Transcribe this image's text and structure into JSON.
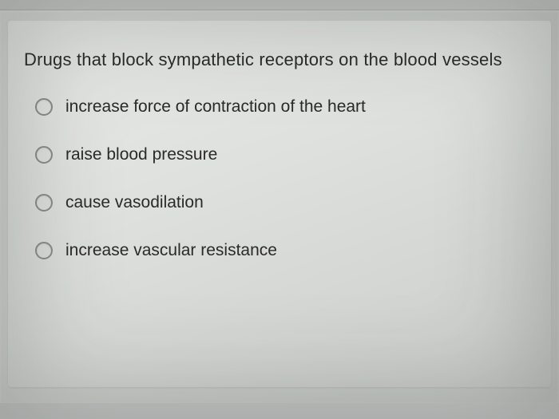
{
  "question": {
    "text": "Drugs that block sympathetic receptors on the blood vessels",
    "options": [
      {
        "label": "increase force of contraction of the heart",
        "selected": false
      },
      {
        "label": "raise blood pressure",
        "selected": false
      },
      {
        "label": "cause vasodilation",
        "selected": false
      },
      {
        "label": "increase vascular resistance",
        "selected": false
      }
    ]
  },
  "styling": {
    "background_color": "#c8cbc9",
    "card_gradient_start": "#e8eae7",
    "card_gradient_end": "#caccca",
    "text_color": "#2a2a2a",
    "radio_border_color": "#8a8d8a",
    "question_fontsize": 22,
    "option_fontsize": 21,
    "radio_size": 22,
    "option_spacing": 36
  }
}
